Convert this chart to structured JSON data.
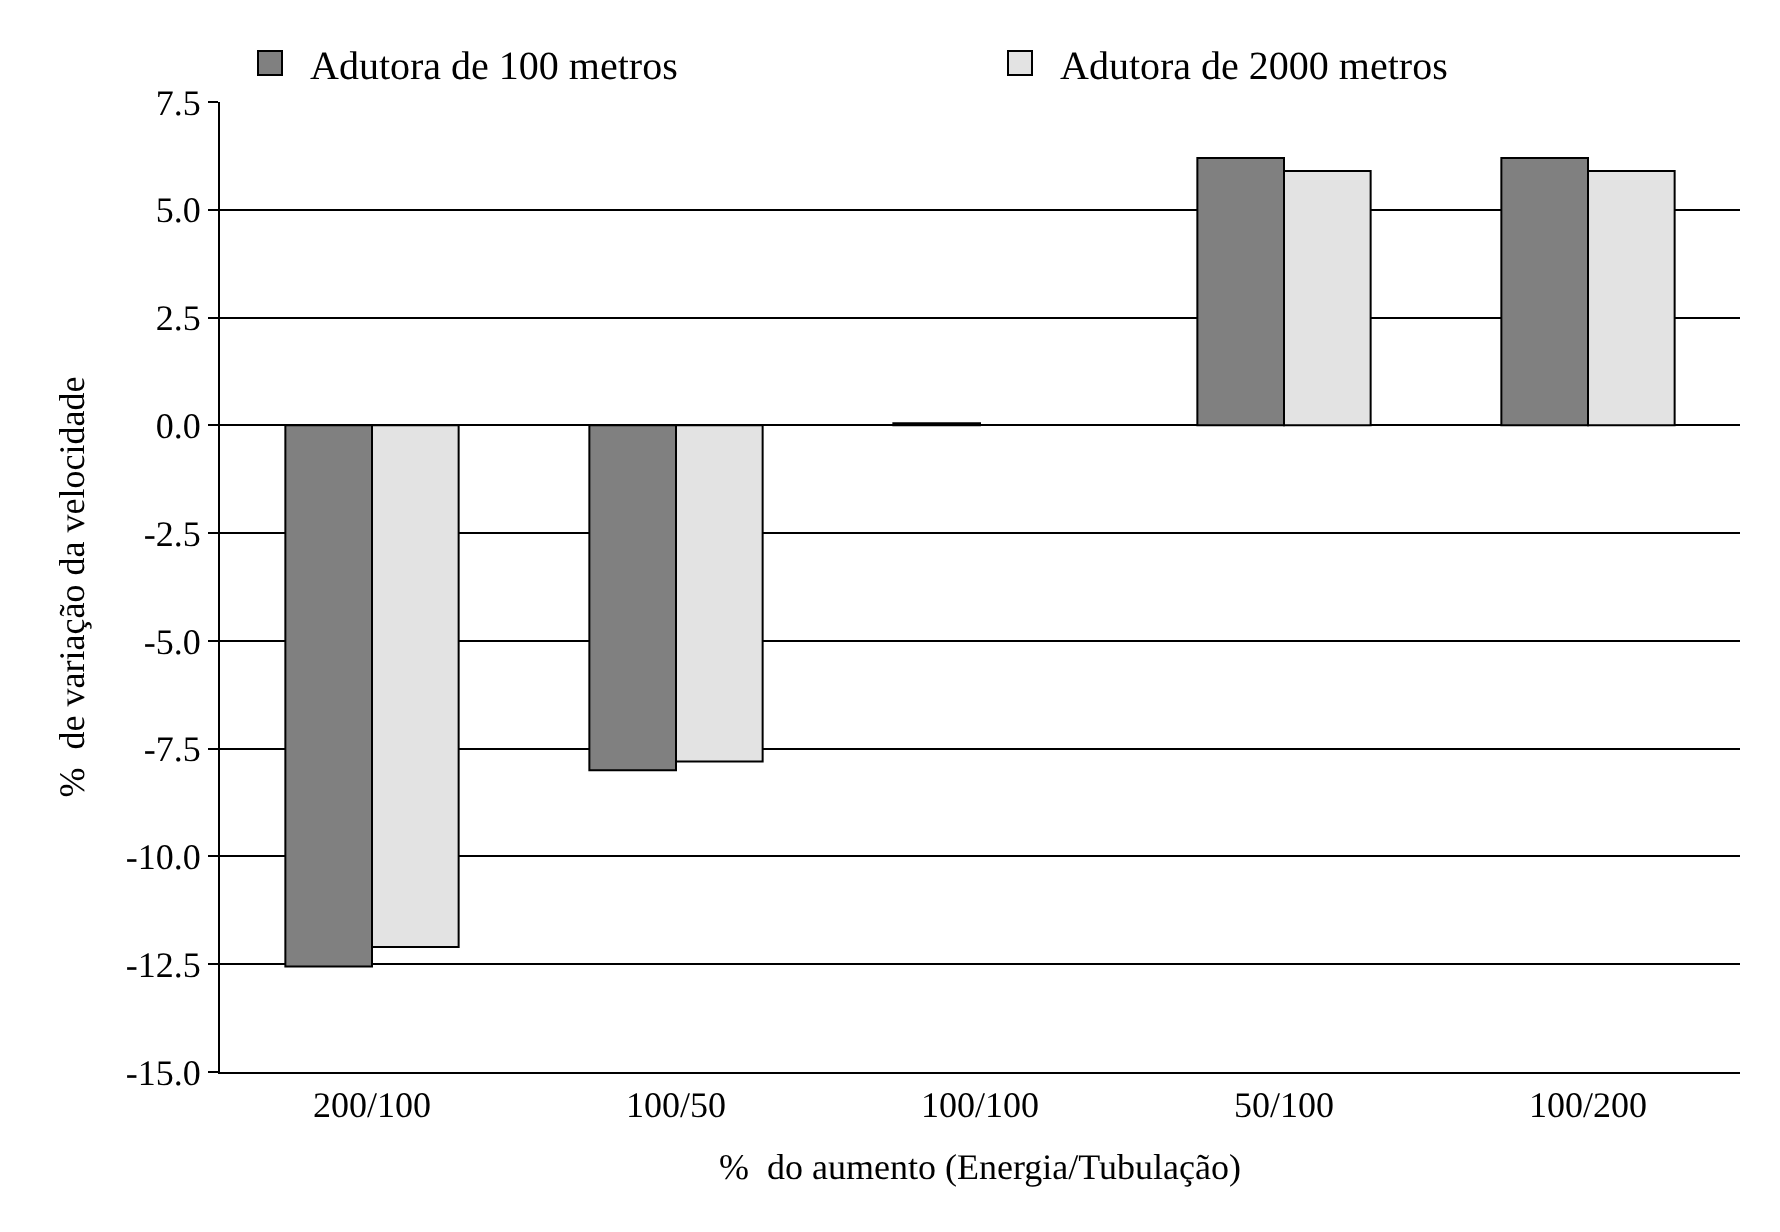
{
  "chart_data": {
    "type": "bar",
    "xlabel": "%  do aumento (Energia/Tubulação)",
    "ylabel": "%  de variação da velocidade",
    "categories": [
      "200/100",
      "100/50",
      "100/100",
      "50/100",
      "100/200"
    ],
    "series": [
      {
        "name": "Adutora de 100 metros",
        "color": "#808080",
        "values": [
          -12.55,
          -8.0,
          0.05,
          6.2,
          6.2
        ]
      },
      {
        "name": "Adutora de 2000 metros",
        "color": "#e3e3e3",
        "values": [
          -12.1,
          -7.8,
          null,
          5.9,
          5.9
        ]
      }
    ],
    "ylim": [
      -15,
      7.5
    ],
    "yticks": [
      {
        "value": -15,
        "label": "-15.0"
      },
      {
        "value": -12.5,
        "label": "-12.5"
      },
      {
        "value": -10,
        "label": "-10.0"
      },
      {
        "value": -7.5,
        "label": "-7.5"
      },
      {
        "value": -5,
        "label": "-5.0"
      },
      {
        "value": -2.5,
        "label": "-2.5"
      },
      {
        "value": 0,
        "label": "0.0"
      },
      {
        "value": 2.5,
        "label": "2.5"
      },
      {
        "value": 5,
        "label": "5.0"
      },
      {
        "value": 7.5,
        "label": "7.5"
      }
    ],
    "grid": "y",
    "legend": "top"
  }
}
